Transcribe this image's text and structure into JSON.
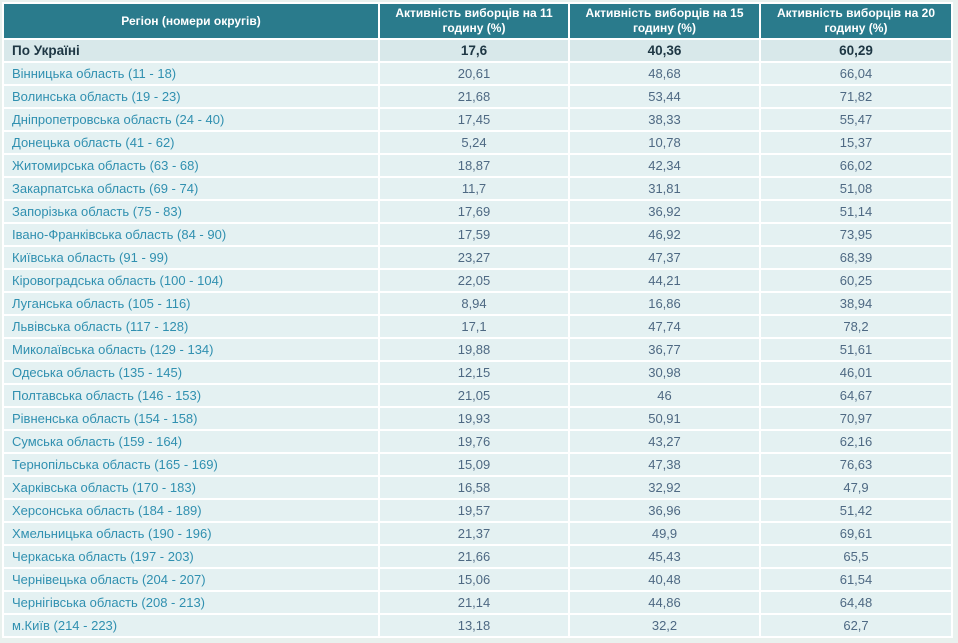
{
  "table": {
    "headers": [
      "Регіон (номери округів)",
      "Активність виборців на 11 годину (%)",
      "Активність виборців на 15 годину (%)",
      "Активність виборців на 20 годину (%)"
    ],
    "summary_row": {
      "region": "По Україні",
      "values": [
        "17,6",
        "40,36",
        "60,29"
      ]
    },
    "rows": [
      {
        "region": "Вінницька область (11 - 18)",
        "values": [
          "20,61",
          "48,68",
          "66,04"
        ]
      },
      {
        "region": "Волинська область (19 - 23)",
        "values": [
          "21,68",
          "53,44",
          "71,82"
        ]
      },
      {
        "region": "Дніпропетровська область (24 - 40)",
        "values": [
          "17,45",
          "38,33",
          "55,47"
        ]
      },
      {
        "region": "Донецька область (41 - 62)",
        "values": [
          "5,24",
          "10,78",
          "15,37"
        ]
      },
      {
        "region": "Житомирська область (63 - 68)",
        "values": [
          "18,87",
          "42,34",
          "66,02"
        ]
      },
      {
        "region": "Закарпатська область (69 - 74)",
        "values": [
          "11,7",
          "31,81",
          "51,08"
        ]
      },
      {
        "region": "Запорізька область (75 - 83)",
        "values": [
          "17,69",
          "36,92",
          "51,14"
        ]
      },
      {
        "region": "Івано-Франківська область (84 - 90)",
        "values": [
          "17,59",
          "46,92",
          "73,95"
        ]
      },
      {
        "region": "Київська область (91 - 99)",
        "values": [
          "23,27",
          "47,37",
          "68,39"
        ]
      },
      {
        "region": "Кіровоградська область (100 - 104)",
        "values": [
          "22,05",
          "44,21",
          "60,25"
        ]
      },
      {
        "region": "Луганська область (105 - 116)",
        "values": [
          "8,94",
          "16,86",
          "38,94"
        ]
      },
      {
        "region": "Львівська область (117 - 128)",
        "values": [
          "17,1",
          "47,74",
          "78,2"
        ]
      },
      {
        "region": "Миколаївська область (129 - 134)",
        "values": [
          "19,88",
          "36,77",
          "51,61"
        ]
      },
      {
        "region": "Одеська область (135 - 145)",
        "values": [
          "12,15",
          "30,98",
          "46,01"
        ]
      },
      {
        "region": "Полтавська область (146 - 153)",
        "values": [
          "21,05",
          "46",
          "64,67"
        ]
      },
      {
        "region": "Рівненська область (154 - 158)",
        "values": [
          "19,93",
          "50,91",
          "70,97"
        ]
      },
      {
        "region": "Сумська область (159 - 164)",
        "values": [
          "19,76",
          "43,27",
          "62,16"
        ]
      },
      {
        "region": "Тернопільська область (165 - 169)",
        "values": [
          "15,09",
          "47,38",
          "76,63"
        ]
      },
      {
        "region": "Харківська область (170 - 183)",
        "values": [
          "16,58",
          "32,92",
          "47,9"
        ]
      },
      {
        "region": "Херсонська область (184 - 189)",
        "values": [
          "19,57",
          "36,96",
          "51,42"
        ]
      },
      {
        "region": "Хмельницька область (190 - 196)",
        "values": [
          "21,37",
          "49,9",
          "69,61"
        ]
      },
      {
        "region": "Черкаська область (197 - 203)",
        "values": [
          "21,66",
          "45,43",
          "65,5"
        ]
      },
      {
        "region": "Чернівецька область (204 - 207)",
        "values": [
          "15,06",
          "40,48",
          "61,54"
        ]
      },
      {
        "region": "Чернігівська область (208 - 213)",
        "values": [
          "21,14",
          "44,86",
          "64,48"
        ]
      },
      {
        "region": "м.Київ (214 - 223)",
        "values": [
          "13,18",
          "32,2",
          "62,7"
        ]
      }
    ]
  },
  "colors": {
    "header-bg": "#2A7B8C",
    "header-text": "#FFFFFF",
    "summary-bg": "#D8E8EA",
    "summary-text": "#1E3744",
    "row-bg": "#E4F1F2",
    "region-link": "#3090B0",
    "value-text": "#4E6983",
    "outer-bg": "#E9F1EE"
  }
}
